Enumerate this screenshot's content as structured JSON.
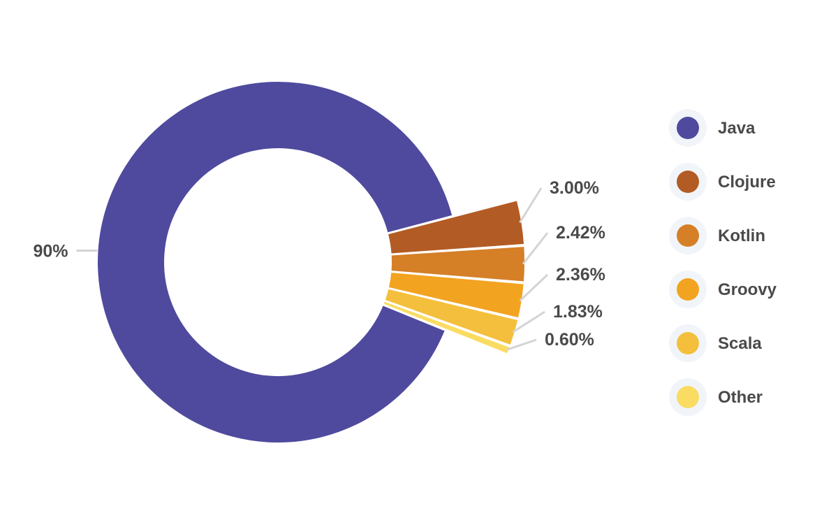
{
  "chart_data": {
    "type": "pie",
    "variant": "donut-with-exploded-small-slices",
    "legend_position": "right",
    "slices": [
      {
        "name": "Java",
        "value": 90,
        "label": "90%",
        "color": "#4F4A9E"
      },
      {
        "name": "Clojure",
        "value": 3.0,
        "label": "3.00%",
        "color": "#B35B24"
      },
      {
        "name": "Kotlin",
        "value": 2.42,
        "label": "2.42%",
        "color": "#D57F27"
      },
      {
        "name": "Groovy",
        "value": 2.36,
        "label": "2.36%",
        "color": "#F2A320"
      },
      {
        "name": "Scala",
        "value": 1.83,
        "label": "1.83%",
        "color": "#F4BF3C"
      },
      {
        "name": "Other",
        "value": 0.6,
        "label": "0.60%",
        "color": "#FADC63"
      }
    ]
  }
}
